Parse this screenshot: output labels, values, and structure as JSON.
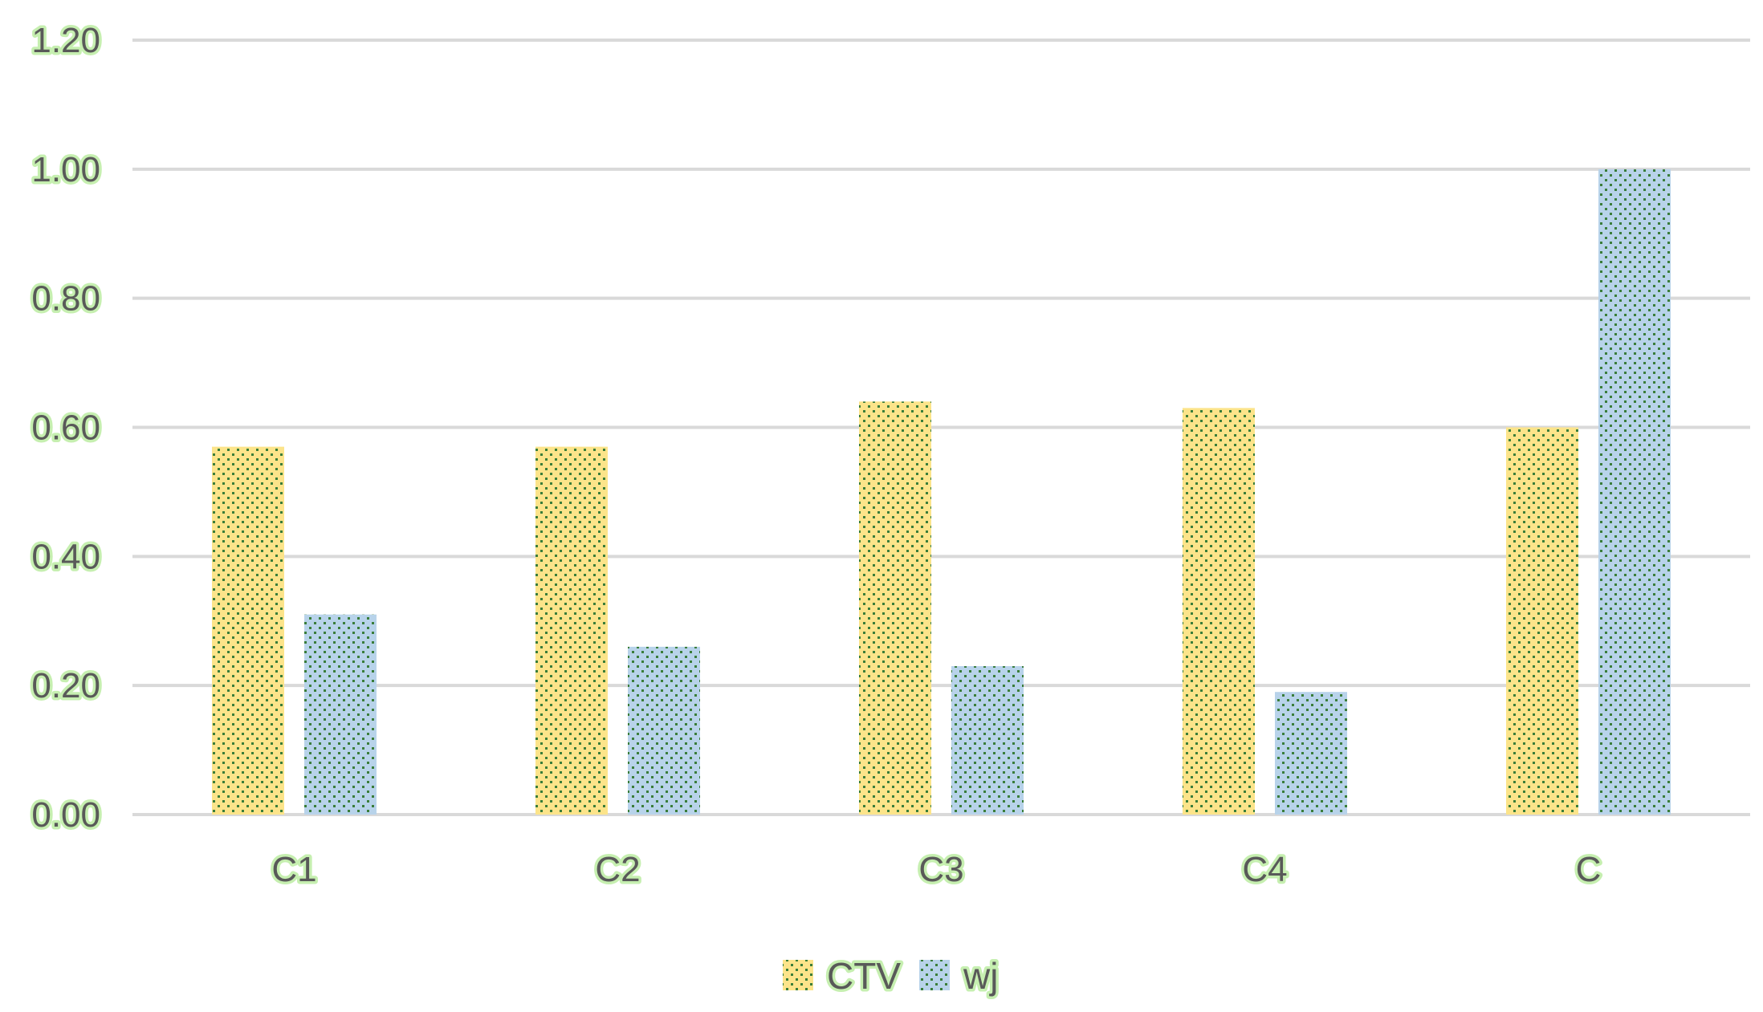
{
  "chart_data": {
    "type": "bar",
    "title": "",
    "xlabel": "",
    "ylabel": "",
    "categories": [
      "C1",
      "C2",
      "C3",
      "C4",
      "C"
    ],
    "series": [
      {
        "name": "CTV",
        "values": [
          0.57,
          0.57,
          0.64,
          0.63,
          0.6
        ],
        "color": "#fce48a",
        "dot_color": "#3a7d3a"
      },
      {
        "name": "wj",
        "values": [
          0.31,
          0.26,
          0.23,
          0.19,
          1.0
        ],
        "color": "#b8d3ea",
        "dot_color": "#3a7d3a"
      }
    ],
    "ylim": [
      0,
      1.2
    ],
    "yticks": [
      "0.00",
      "0.20",
      "0.40",
      "0.60",
      "0.80",
      "1.00",
      "1.20"
    ],
    "grid": true,
    "legend_position": "bottom"
  }
}
